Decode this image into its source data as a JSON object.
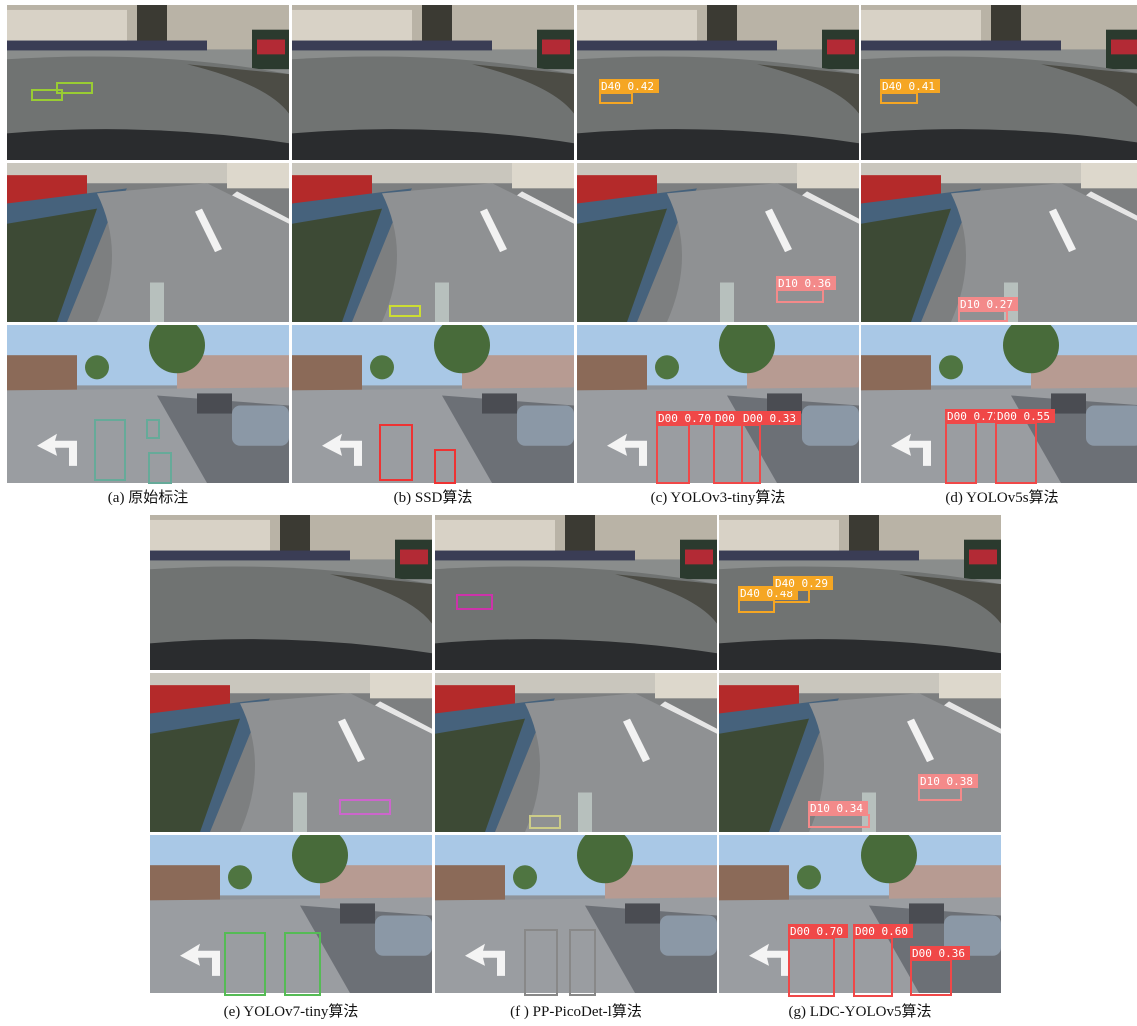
{
  "panels": [
    {
      "caption": "(a) 原始标注",
      "labels": []
    },
    {
      "caption": "(b) SSD算法",
      "labels": []
    },
    {
      "caption": "(c) YOLOv3-tiny算法",
      "labels": [
        "D40 0.42",
        "D10 0.36",
        "D00 0.70",
        "D00 0.43",
        "D00 0.33"
      ]
    },
    {
      "caption": "(d) YOLOv5s算法",
      "labels": [
        "D40 0.41",
        "D10 0.27",
        "D00 0.72",
        "D00 0.55"
      ]
    },
    {
      "caption": "(e) YOLOv7-tiny算法",
      "labels": []
    },
    {
      "caption": "(f ) PP-PicoDet-l算法",
      "labels": []
    },
    {
      "caption": "(g) LDC-YOLOv5算法",
      "labels": [
        "D40 0.48",
        "D40 0.29",
        "D10 0.38",
        "D10 0.34",
        "D00 0.70",
        "D00 0.60",
        "D00 0.36"
      ]
    }
  ]
}
